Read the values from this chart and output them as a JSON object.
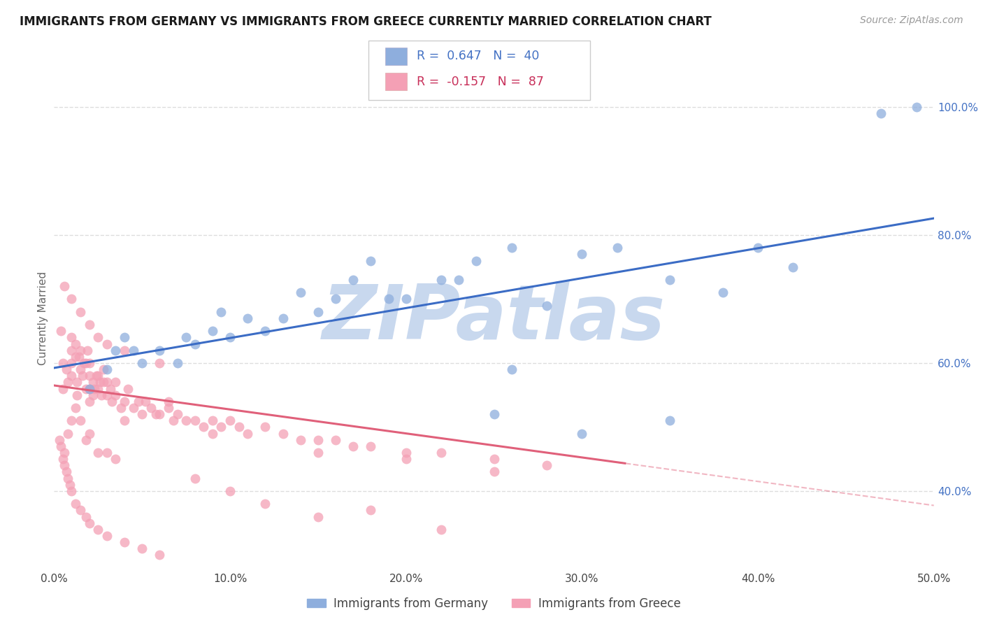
{
  "title": "IMMIGRANTS FROM GERMANY VS IMMIGRANTS FROM GREECE CURRENTLY MARRIED CORRELATION CHART",
  "source": "Source: ZipAtlas.com",
  "ylabel": "Currently Married",
  "xlim": [
    0.0,
    0.5
  ],
  "ylim": [
    0.28,
    1.06
  ],
  "xticks": [
    0.0,
    0.1,
    0.2,
    0.3,
    0.4,
    0.5
  ],
  "xtick_labels": [
    "0.0%",
    "10.0%",
    "20.0%",
    "30.0%",
    "40.0%",
    "50.0%"
  ],
  "yticks_right": [
    0.4,
    0.6,
    0.8,
    1.0
  ],
  "ytick_labels_right": [
    "40.0%",
    "60.0%",
    "80.0%",
    "100.0%"
  ],
  "germany_color": "#8EAEDD",
  "greece_color": "#F4A0B5",
  "germany_line_color": "#3B6CC5",
  "greece_line_color": "#E0607A",
  "germany_R": 0.647,
  "germany_N": 40,
  "greece_R": -0.157,
  "greece_N": 87,
  "legend_blue": "#4472C4",
  "legend_pink": "#C8305A",
  "watermark": "ZIPatlas",
  "watermark_color": "#C8D8EE",
  "germany_x": [
    0.02,
    0.03,
    0.035,
    0.04,
    0.045,
    0.05,
    0.06,
    0.07,
    0.075,
    0.08,
    0.09,
    0.095,
    0.1,
    0.11,
    0.12,
    0.13,
    0.14,
    0.15,
    0.16,
    0.17,
    0.18,
    0.19,
    0.2,
    0.22,
    0.23,
    0.24,
    0.25,
    0.26,
    0.28,
    0.3,
    0.32,
    0.35,
    0.38,
    0.4,
    0.42,
    0.26,
    0.3,
    0.35,
    0.47,
    0.49
  ],
  "germany_y": [
    0.56,
    0.59,
    0.62,
    0.64,
    0.62,
    0.6,
    0.62,
    0.6,
    0.64,
    0.63,
    0.65,
    0.68,
    0.64,
    0.67,
    0.65,
    0.67,
    0.71,
    0.68,
    0.7,
    0.73,
    0.76,
    0.7,
    0.7,
    0.73,
    0.73,
    0.76,
    0.52,
    0.59,
    0.69,
    0.77,
    0.78,
    0.73,
    0.71,
    0.78,
    0.75,
    0.78,
    0.49,
    0.51,
    0.99,
    1.0
  ],
  "greece_x": [
    0.005,
    0.005,
    0.007,
    0.008,
    0.01,
    0.01,
    0.01,
    0.01,
    0.012,
    0.012,
    0.013,
    0.013,
    0.014,
    0.015,
    0.015,
    0.016,
    0.017,
    0.018,
    0.018,
    0.019,
    0.02,
    0.02,
    0.02,
    0.02,
    0.022,
    0.022,
    0.023,
    0.024,
    0.025,
    0.025,
    0.026,
    0.027,
    0.028,
    0.028,
    0.03,
    0.03,
    0.032,
    0.033,
    0.035,
    0.035,
    0.038,
    0.04,
    0.042,
    0.045,
    0.048,
    0.05,
    0.052,
    0.055,
    0.058,
    0.06,
    0.065,
    0.068,
    0.07,
    0.075,
    0.08,
    0.085,
    0.09,
    0.095,
    0.1,
    0.105,
    0.11,
    0.12,
    0.13,
    0.14,
    0.15,
    0.16,
    0.17,
    0.18,
    0.2,
    0.22,
    0.25,
    0.28,
    0.004,
    0.006,
    0.008,
    0.01,
    0.012,
    0.015,
    0.018,
    0.02,
    0.025,
    0.03,
    0.035,
    0.04,
    0.065,
    0.09,
    0.15,
    0.2,
    0.25
  ],
  "greece_y": [
    0.56,
    0.6,
    0.59,
    0.57,
    0.58,
    0.6,
    0.62,
    0.64,
    0.61,
    0.63,
    0.55,
    0.57,
    0.61,
    0.59,
    0.62,
    0.58,
    0.6,
    0.56,
    0.6,
    0.62,
    0.54,
    0.56,
    0.58,
    0.6,
    0.57,
    0.55,
    0.56,
    0.58,
    0.56,
    0.58,
    0.57,
    0.55,
    0.57,
    0.59,
    0.55,
    0.57,
    0.56,
    0.54,
    0.55,
    0.57,
    0.53,
    0.54,
    0.56,
    0.53,
    0.54,
    0.52,
    0.54,
    0.53,
    0.52,
    0.52,
    0.53,
    0.51,
    0.52,
    0.51,
    0.51,
    0.5,
    0.51,
    0.5,
    0.51,
    0.5,
    0.49,
    0.5,
    0.49,
    0.48,
    0.48,
    0.48,
    0.47,
    0.47,
    0.46,
    0.46,
    0.45,
    0.44,
    0.65,
    0.46,
    0.49,
    0.51,
    0.53,
    0.51,
    0.48,
    0.49,
    0.46,
    0.46,
    0.45,
    0.51,
    0.54,
    0.49,
    0.46,
    0.45,
    0.43
  ],
  "greece_extra_x": [
    0.003,
    0.004,
    0.005,
    0.006,
    0.007,
    0.008,
    0.009,
    0.01,
    0.012,
    0.015,
    0.018,
    0.02,
    0.025,
    0.03,
    0.04,
    0.05,
    0.06,
    0.08,
    0.1,
    0.12,
    0.15,
    0.18,
    0.22,
    0.006,
    0.01,
    0.015,
    0.02,
    0.025,
    0.03,
    0.04,
    0.06
  ],
  "greece_extra_y": [
    0.48,
    0.47,
    0.45,
    0.44,
    0.43,
    0.42,
    0.41,
    0.4,
    0.38,
    0.37,
    0.36,
    0.35,
    0.34,
    0.33,
    0.32,
    0.31,
    0.3,
    0.42,
    0.4,
    0.38,
    0.36,
    0.37,
    0.34,
    0.72,
    0.7,
    0.68,
    0.66,
    0.64,
    0.63,
    0.62,
    0.6
  ],
  "grid_color": "#DDDDDD",
  "bg_color": "#FFFFFF"
}
